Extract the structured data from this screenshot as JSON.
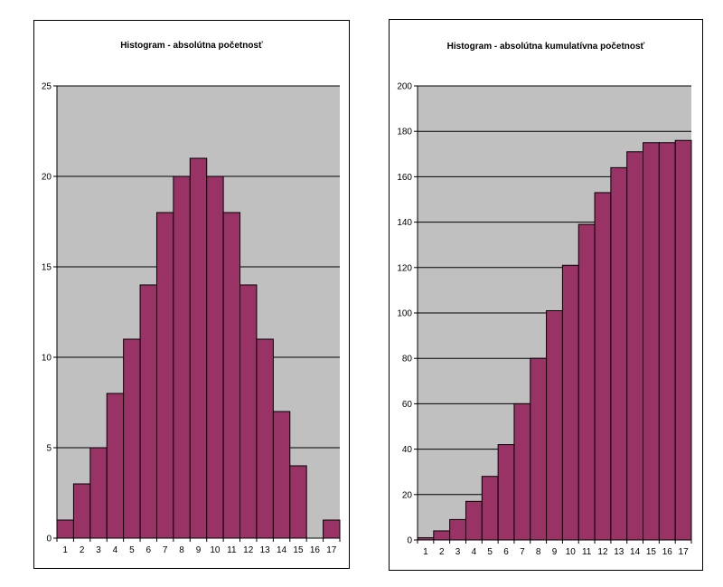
{
  "chart_data": [
    {
      "type": "bar",
      "title": "Histogram - absolútna početnosť",
      "categories": [
        "1",
        "2",
        "3",
        "4",
        "5",
        "6",
        "7",
        "8",
        "9",
        "10",
        "11",
        "12",
        "13",
        "14",
        "15",
        "16",
        "17"
      ],
      "values": [
        1,
        3,
        5,
        8,
        11,
        14,
        18,
        20,
        21,
        20,
        18,
        14,
        11,
        7,
        4,
        0,
        1
      ],
      "xlabel": "",
      "ylabel": "",
      "ylim": [
        0,
        25
      ],
      "yticks": [
        "0",
        "5",
        "10",
        "15",
        "20",
        "25"
      ],
      "grid": true,
      "legend": "none",
      "colors": {
        "bar": "#993366",
        "plot_bg": "#c0c0c0",
        "grid": "#000000"
      }
    },
    {
      "type": "bar",
      "title": "Histogram - absolútna kumulatívna početnosť",
      "categories": [
        "1",
        "2",
        "3",
        "4",
        "5",
        "6",
        "7",
        "8",
        "9",
        "10",
        "11",
        "12",
        "13",
        "14",
        "15",
        "16",
        "17"
      ],
      "values": [
        1,
        4,
        9,
        17,
        28,
        42,
        60,
        80,
        101,
        121,
        139,
        153,
        164,
        171,
        175,
        175,
        176
      ],
      "xlabel": "",
      "ylabel": "",
      "ylim": [
        0,
        200
      ],
      "yticks": [
        "0",
        "20",
        "40",
        "60",
        "80",
        "100",
        "120",
        "140",
        "160",
        "180",
        "200"
      ],
      "grid": true,
      "legend": "none",
      "colors": {
        "bar": "#993366",
        "plot_bg": "#c0c0c0",
        "grid": "#000000"
      }
    }
  ]
}
